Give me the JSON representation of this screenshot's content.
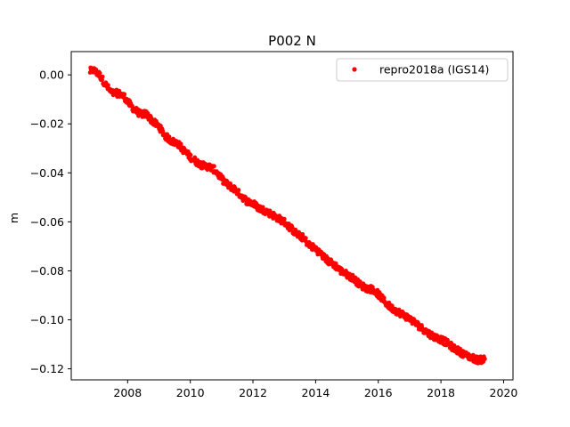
{
  "chart_data": {
    "type": "scatter",
    "title": "P002 N",
    "xlabel": "",
    "ylabel": "m",
    "xlim": [
      2006.2,
      2020.3
    ],
    "ylim": [
      -0.1245,
      0.0095
    ],
    "x_ticks": [
      2008,
      2010,
      2012,
      2014,
      2016,
      2018,
      2020
    ],
    "y_ticks": [
      0.0,
      -0.02,
      -0.04,
      -0.06,
      -0.08,
      -0.1,
      -0.12
    ],
    "x_tick_labels": [
      "2008",
      "2010",
      "2012",
      "2014",
      "2016",
      "2018",
      "2020"
    ],
    "y_tick_labels": [
      "0.00",
      "−0.02",
      "−0.04",
      "−0.06",
      "−0.08",
      "−0.10",
      "−0.12"
    ],
    "grid": false,
    "legend": {
      "position": "top-right"
    },
    "colors": {
      "series": "#ff0000"
    },
    "series": [
      {
        "name": "repro2018a (IGS14)",
        "marker": "dot",
        "color": "#ff0000",
        "x": [
          2006.8,
          2006.9,
          2007.0,
          2007.1,
          2007.2,
          2007.35,
          2007.5,
          2007.7,
          2007.9,
          2008.0,
          2008.2,
          2008.4,
          2008.6,
          2008.8,
          2009.0,
          2009.2,
          2009.4,
          2009.6,
          2009.8,
          2010.0,
          2010.2,
          2010.4,
          2010.6,
          2010.8,
          2011.0,
          2011.2,
          2011.4,
          2011.6,
          2011.8,
          2012.0,
          2012.2,
          2012.4,
          2012.6,
          2012.8,
          2013.0,
          2013.2,
          2013.4,
          2013.6,
          2013.8,
          2014.0,
          2014.2,
          2014.4,
          2014.6,
          2014.8,
          2015.0,
          2015.2,
          2015.4,
          2015.6,
          2015.8,
          2016.0,
          2016.2,
          2016.4,
          2016.6,
          2016.8,
          2017.0,
          2017.2,
          2017.4,
          2017.6,
          2017.8,
          2018.0,
          2018.2,
          2018.4,
          2018.6,
          2018.8,
          2019.0,
          2019.2,
          2019.4
        ],
        "y": [
          0.0015,
          0.002,
          0.001,
          0.0,
          -0.002,
          -0.005,
          -0.0075,
          -0.0075,
          -0.009,
          -0.011,
          -0.014,
          -0.016,
          -0.016,
          -0.019,
          -0.021,
          -0.025,
          -0.027,
          -0.028,
          -0.031,
          -0.0335,
          -0.0355,
          -0.037,
          -0.0375,
          -0.039,
          -0.0425,
          -0.045,
          -0.0465,
          -0.049,
          -0.0515,
          -0.0525,
          -0.0545,
          -0.0555,
          -0.057,
          -0.0585,
          -0.06,
          -0.0625,
          -0.065,
          -0.0665,
          -0.0695,
          -0.071,
          -0.0735,
          -0.076,
          -0.0775,
          -0.08,
          -0.0815,
          -0.083,
          -0.0855,
          -0.087,
          -0.0875,
          -0.0895,
          -0.0925,
          -0.095,
          -0.0965,
          -0.098,
          -0.0995,
          -0.1015,
          -0.1035,
          -0.1055,
          -0.107,
          -0.108,
          -0.1095,
          -0.1115,
          -0.113,
          -0.1145,
          -0.1155,
          -0.1165,
          -0.116
        ]
      }
    ]
  }
}
